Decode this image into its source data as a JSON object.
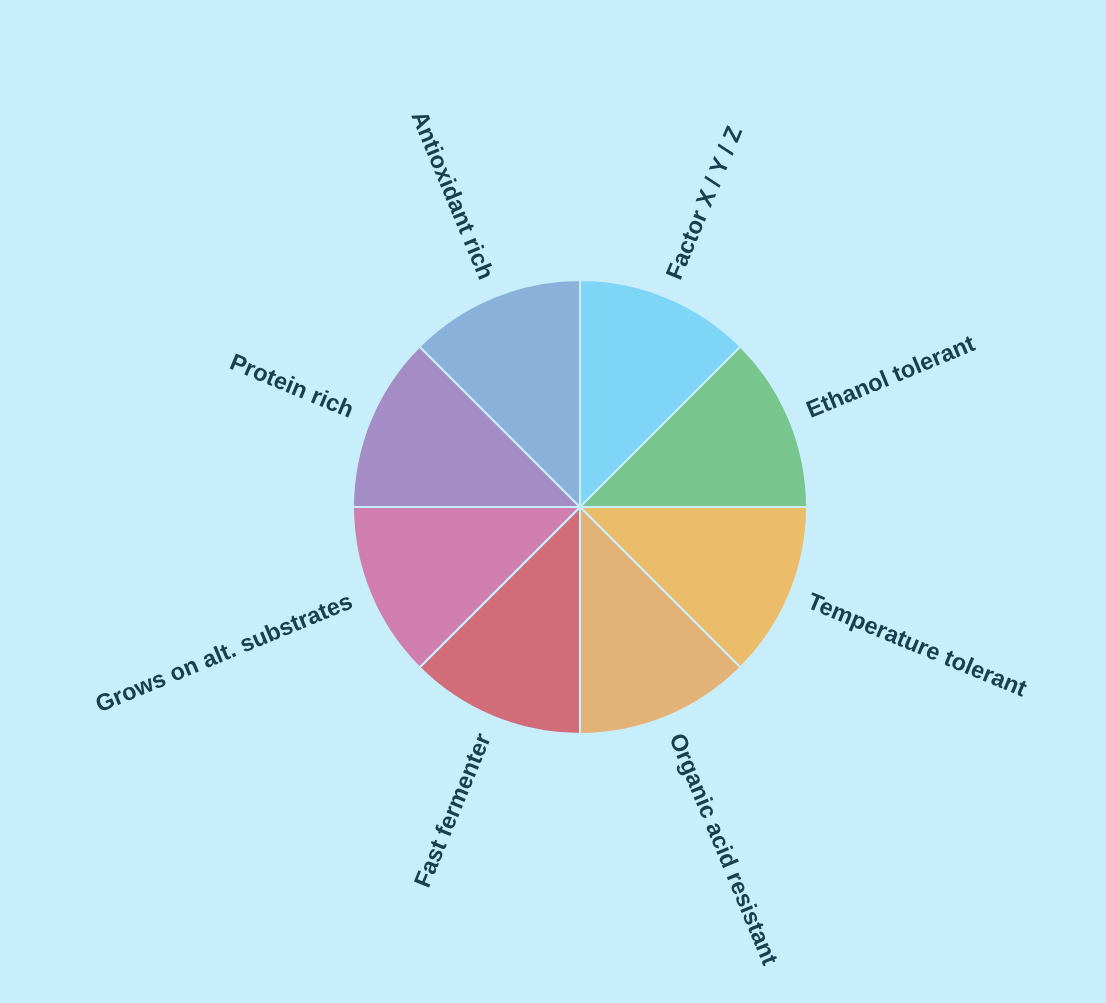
{
  "chart_data": {
    "type": "pie",
    "categories": [
      "Factor X / Y / Z",
      "Ethanol tolerant",
      "Temperature tolerant",
      "Organic acid resistant",
      "Fast fermenter",
      "Grows on alt. substrates",
      "Protein rich",
      "Antioxidant rich"
    ],
    "values": [
      12.5,
      12.5,
      12.5,
      12.5,
      12.5,
      12.5,
      12.5,
      12.5
    ],
    "colors": [
      "#7fd5f5",
      "#78c68e",
      "#ebbc6a",
      "#e3b276",
      "#d16d78",
      "#d07eb0",
      "#a48dc4",
      "#89b1da"
    ]
  }
}
